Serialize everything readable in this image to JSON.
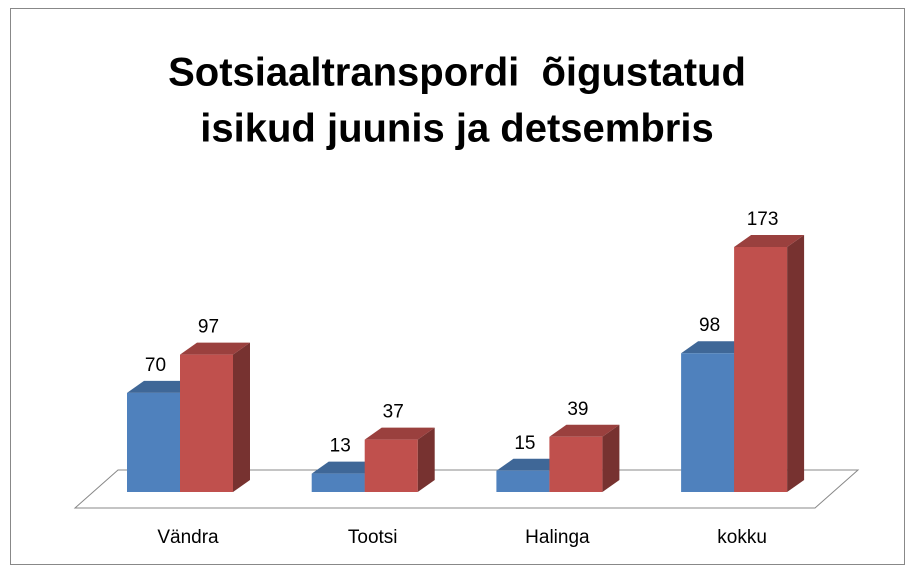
{
  "chart_data": {
    "type": "bar3d",
    "title": [
      "Sotsiaaltranspordi  õigustatud",
      "isikud juunis ja detsembris"
    ],
    "categories": [
      "Vändra",
      "Tootsi",
      "Halinga",
      "kokku"
    ],
    "series": [
      {
        "color": "#4f81bd",
        "values": [
          70,
          13,
          15,
          98
        ]
      },
      {
        "color": "#c0504d",
        "values": [
          97,
          37,
          39,
          173
        ]
      }
    ]
  }
}
